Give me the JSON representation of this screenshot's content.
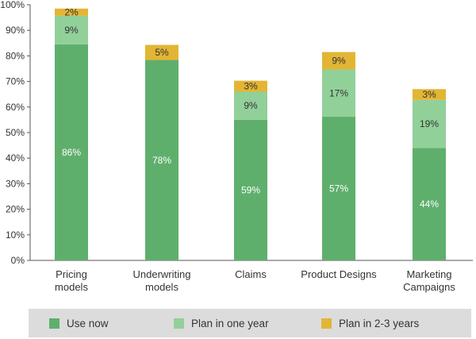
{
  "colors": {
    "use_now": "#5faf6c",
    "plan_one_year": "#92d09a",
    "plan_2_3_years": "#e3b534",
    "axis": "#555555",
    "grid": "#d0d0d0"
  },
  "legend": {
    "items": [
      {
        "label": "Use now",
        "color": "#5faf6c"
      },
      {
        "label": "Plan in one year",
        "color": "#92d09a"
      },
      {
        "label": "Plan in 2-3 years",
        "color": "#e3b534"
      }
    ]
  },
  "chart_data": {
    "type": "bar",
    "stacked": true,
    "categories": [
      [
        "Pricing",
        "models"
      ],
      [
        "Underwriting",
        "models"
      ],
      [
        "Claims"
      ],
      [
        "Product Designs"
      ],
      [
        "Marketing",
        "Campaigns"
      ]
    ],
    "series": [
      {
        "name": "Use now",
        "values": [
          86,
          78,
          59,
          57,
          44
        ],
        "labels": [
          "86%",
          "78%",
          "59%",
          "57%",
          "44%"
        ]
      },
      {
        "name": "Plan in one year",
        "values": [
          9,
          0,
          9,
          17,
          19
        ],
        "labels": [
          "9%",
          "",
          "9%",
          "17%",
          "19%"
        ]
      },
      {
        "name": "Plan in 2-3 years",
        "values": [
          2,
          5,
          3,
          9,
          3
        ],
        "labels": [
          "2%",
          "5%",
          "3%",
          "9%",
          "3%"
        ]
      }
    ],
    "segment_tops": [
      [
        84.5,
        95.7,
        98.5
      ],
      [
        78.4,
        78.4,
        84.3
      ],
      [
        55.0,
        66.0,
        70.3
      ],
      [
        56.2,
        74.7,
        81.5
      ],
      [
        44.0,
        62.8,
        67.0
      ]
    ],
    "yticks": [
      "0%",
      "10%",
      "20%",
      "30%",
      "40%",
      "50%",
      "60%",
      "70%",
      "80%",
      "90%",
      "100%"
    ],
    "ylim": [
      0,
      100
    ],
    "grid": false,
    "legend_position": "bottom"
  }
}
